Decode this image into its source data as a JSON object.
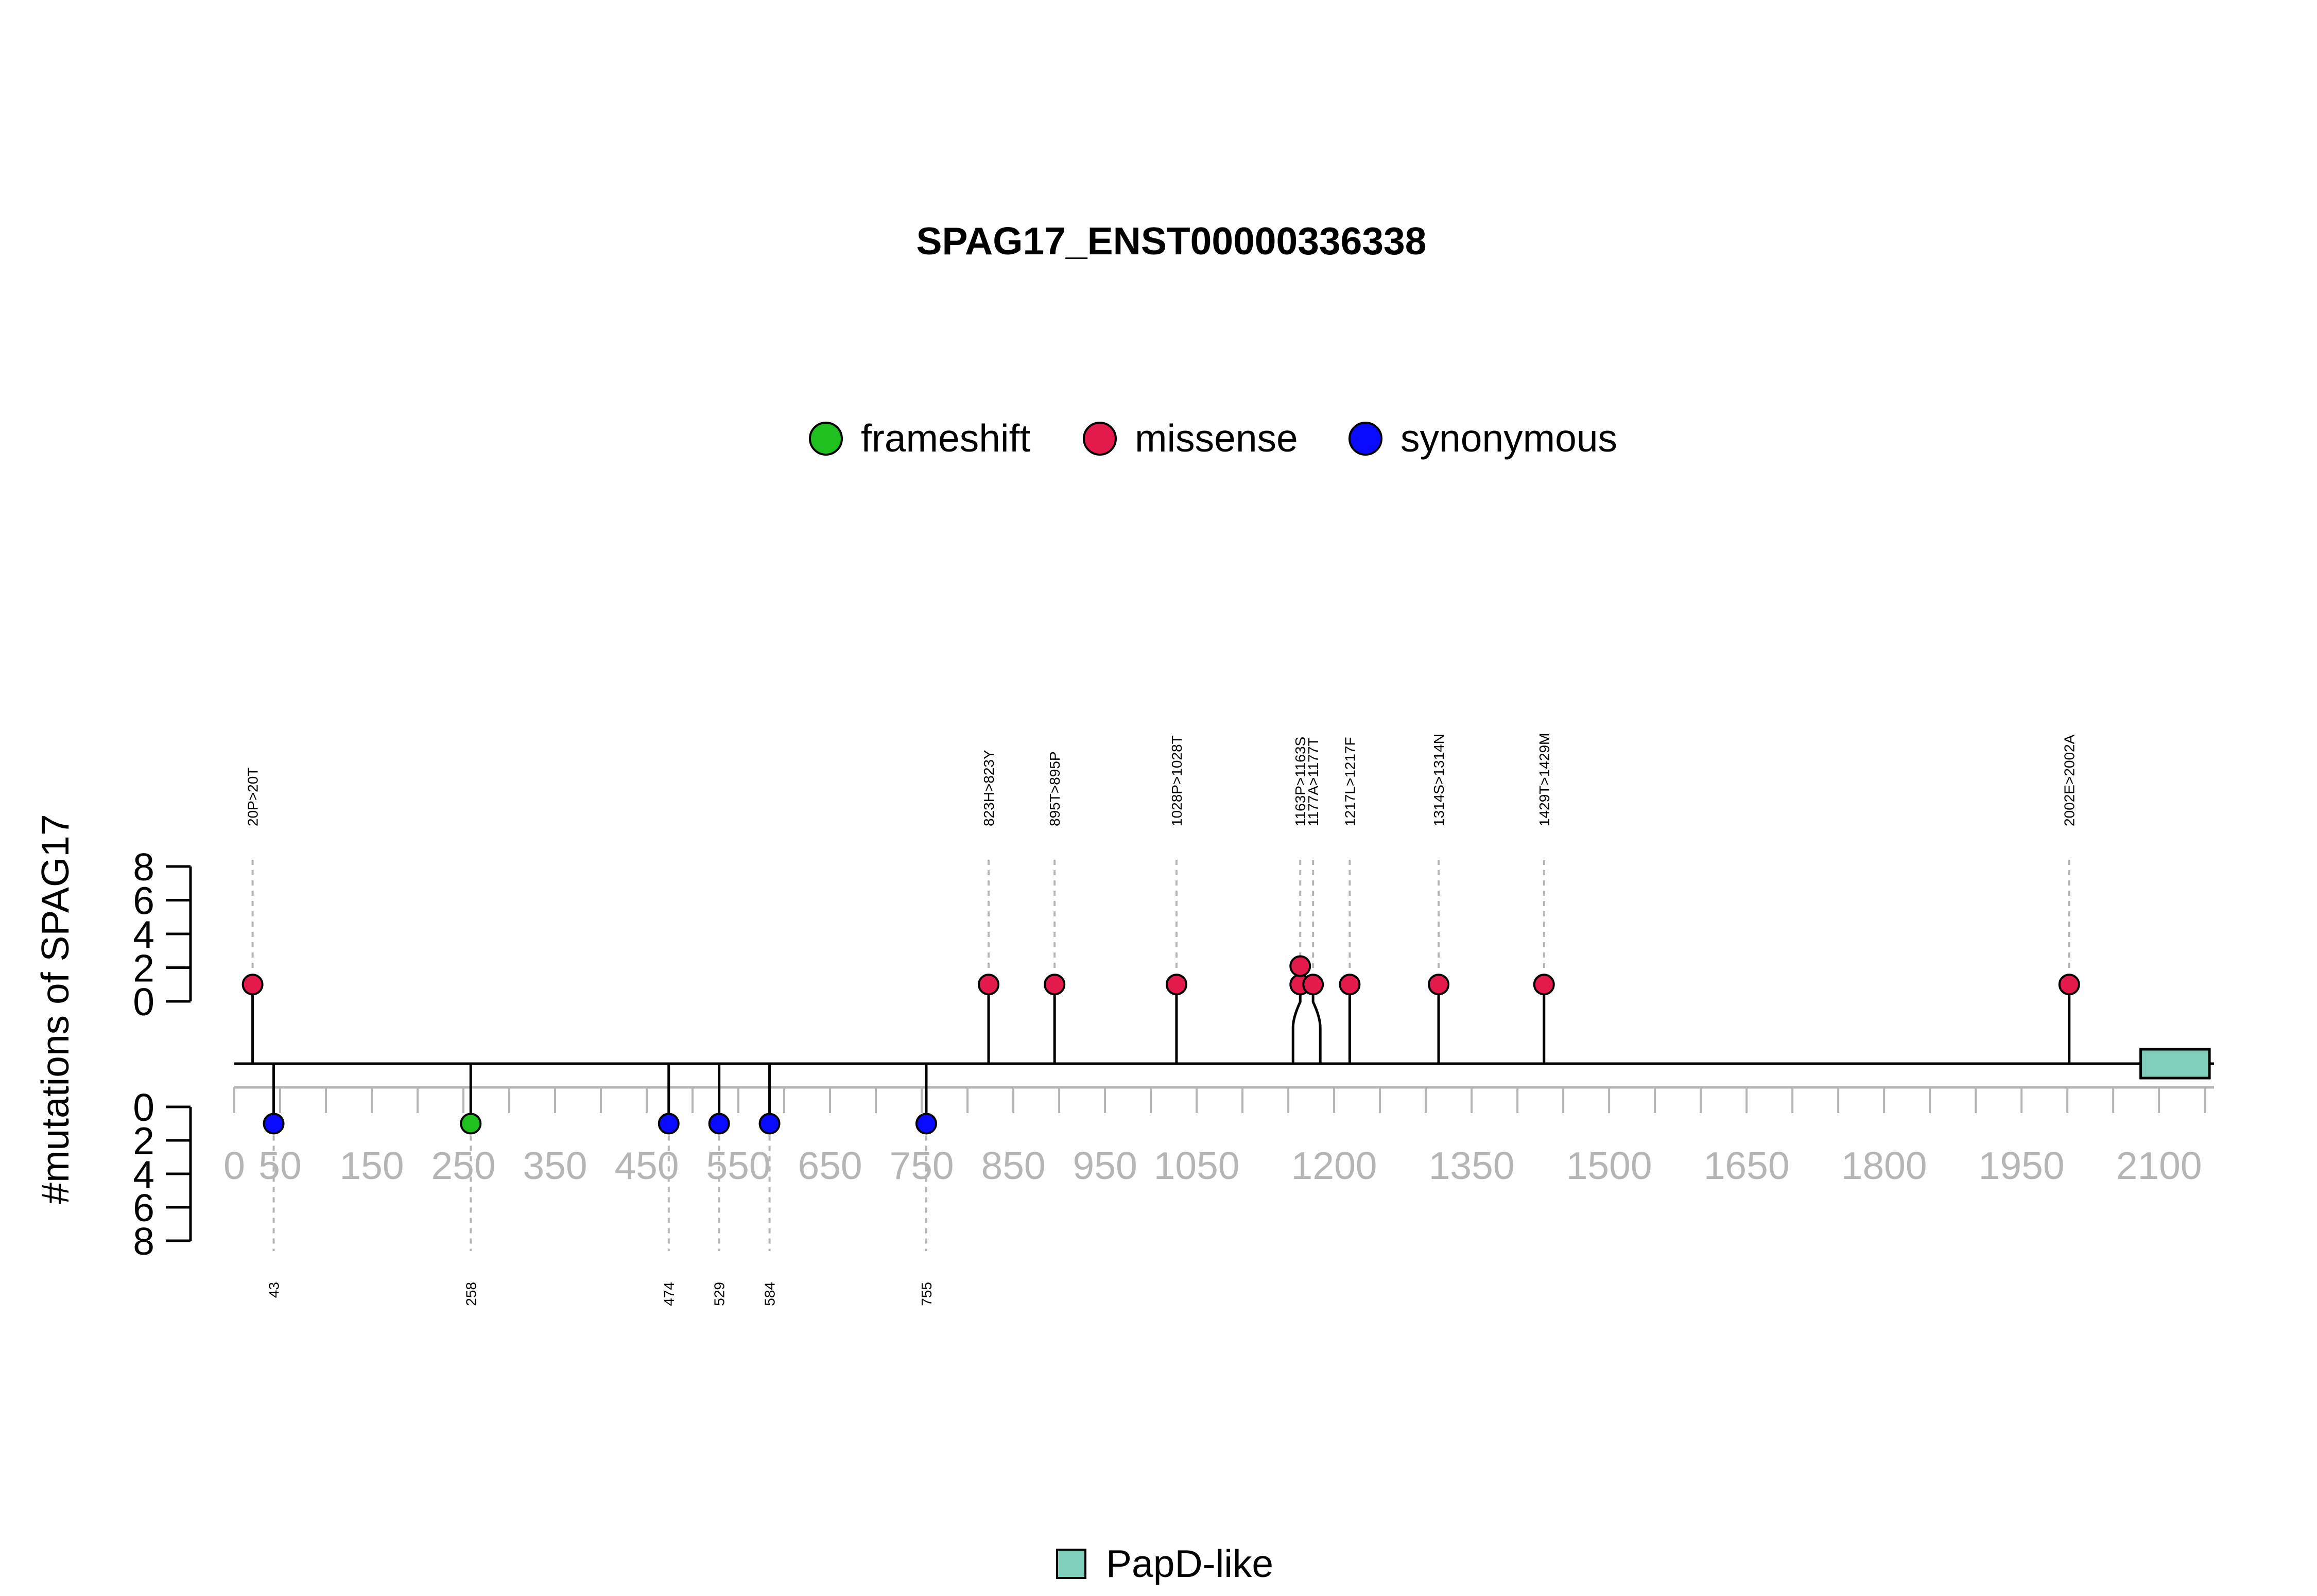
{
  "chart_data": {
    "type": "lollipop",
    "title": "SPAG17_ENST00000336338",
    "ylabel": "#mutations of SPAG17",
    "xlim": [
      0,
      2160
    ],
    "y_ticks": [
      "0",
      "2",
      "4",
      "6",
      "8"
    ],
    "x_ticks": [
      "0",
      "50",
      "150",
      "250",
      "350",
      "450",
      "550",
      "650",
      "750",
      "850",
      "950",
      "1050",
      "1200",
      "1350",
      "1500",
      "1650",
      "1800",
      "1950",
      "2100"
    ],
    "legend": {
      "placement": "top-center",
      "items": [
        {
          "label": "frameshift",
          "color": "#1ec01e"
        },
        {
          "label": "missense",
          "color": "#e31a4b"
        },
        {
          "label": "synonymous",
          "color": "#0a0aff"
        }
      ]
    },
    "upper_mutations": [
      {
        "label": "20P>20T",
        "position": 20,
        "count": 1,
        "type": "missense"
      },
      {
        "label": "823H>823Y",
        "position": 823,
        "count": 1,
        "type": "missense"
      },
      {
        "label": "895T>895P",
        "position": 895,
        "count": 1,
        "type": "missense"
      },
      {
        "label": "1028P>1028T",
        "position": 1028,
        "count": 1,
        "type": "missense"
      },
      {
        "label": "1163P>1163S",
        "position": 1163,
        "count": 2,
        "type": "missense"
      },
      {
        "label": "1177A>1177T",
        "position": 1177,
        "count": 1,
        "type": "missense"
      },
      {
        "label": "1217L>1217F",
        "position": 1217,
        "count": 1,
        "type": "missense"
      },
      {
        "label": "1314S>1314N",
        "position": 1314,
        "count": 1,
        "type": "missense"
      },
      {
        "label": "1429T>1429M",
        "position": 1429,
        "count": 1,
        "type": "missense"
      },
      {
        "label": "2002E>2002A",
        "position": 2002,
        "count": 1,
        "type": "missense"
      }
    ],
    "lower_mutations": [
      {
        "label": "43",
        "position": 43,
        "count": 1,
        "type": "synonymous"
      },
      {
        "label": "258",
        "position": 258,
        "count": 1,
        "type": "frameshift"
      },
      {
        "label": "474",
        "position": 474,
        "count": 1,
        "type": "synonymous"
      },
      {
        "label": "529",
        "position": 529,
        "count": 1,
        "type": "synonymous"
      },
      {
        "label": "584",
        "position": 584,
        "count": 1,
        "type": "synonymous"
      },
      {
        "label": "755",
        "position": 755,
        "count": 1,
        "type": "synonymous"
      }
    ],
    "domains": [
      {
        "name": "PapD-like",
        "start": 2080,
        "end": 2155,
        "color": "#7fcdbb"
      }
    ]
  }
}
